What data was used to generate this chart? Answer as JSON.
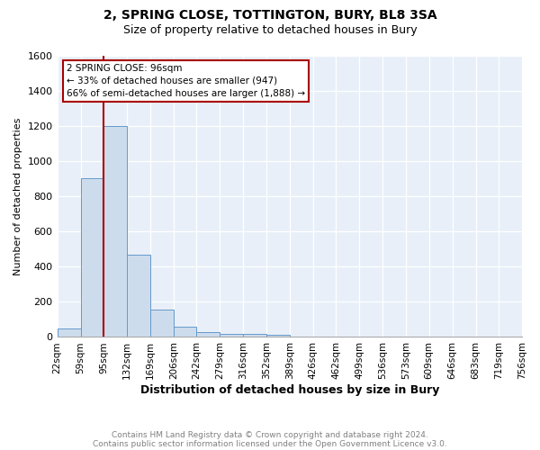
{
  "title_line1": "2, SPRING CLOSE, TOTTINGTON, BURY, BL8 3SA",
  "title_line2": "Size of property relative to detached houses in Bury",
  "xlabel": "Distribution of detached houses by size in Bury",
  "ylabel": "Number of detached properties",
  "bar_values": [
    50,
    900,
    1200,
    470,
    155,
    60,
    30,
    20,
    20,
    15,
    0,
    0,
    0,
    0,
    0,
    0,
    0,
    0,
    0,
    0
  ],
  "bin_edges": [
    22,
    59,
    95,
    132,
    169,
    206,
    242,
    279,
    316,
    352,
    389,
    426,
    462,
    499,
    536,
    573,
    609,
    646,
    683,
    719,
    756
  ],
  "bar_color": "#cddcec",
  "bar_edgecolor": "#6699cc",
  "property_line_x": 95,
  "property_line_color": "#aa0000",
  "ylim": [
    0,
    1600
  ],
  "annotation_line1": "2 SPRING CLOSE: 96sqm",
  "annotation_line2": "← 33% of detached houses are smaller (947)",
  "annotation_line3": "66% of semi-detached houses are larger (1,888) →",
  "annotation_box_color": "#ffffff",
  "annotation_box_edgecolor": "#aa0000",
  "footnote_line1": "Contains HM Land Registry data © Crown copyright and database right 2024.",
  "footnote_line2": "Contains public sector information licensed under the Open Government Licence v3.0.",
  "background_color": "#e8eff8",
  "yticks": [
    0,
    200,
    400,
    600,
    800,
    1000,
    1200,
    1400,
    1600
  ],
  "x_tick_labels": [
    "22sqm",
    "59sqm",
    "95sqm",
    "132sqm",
    "169sqm",
    "206sqm",
    "242sqm",
    "279sqm",
    "316sqm",
    "352sqm",
    "389sqm",
    "426sqm",
    "462sqm",
    "499sqm",
    "536sqm",
    "573sqm",
    "609sqm",
    "646sqm",
    "683sqm",
    "719sqm",
    "756sqm"
  ]
}
